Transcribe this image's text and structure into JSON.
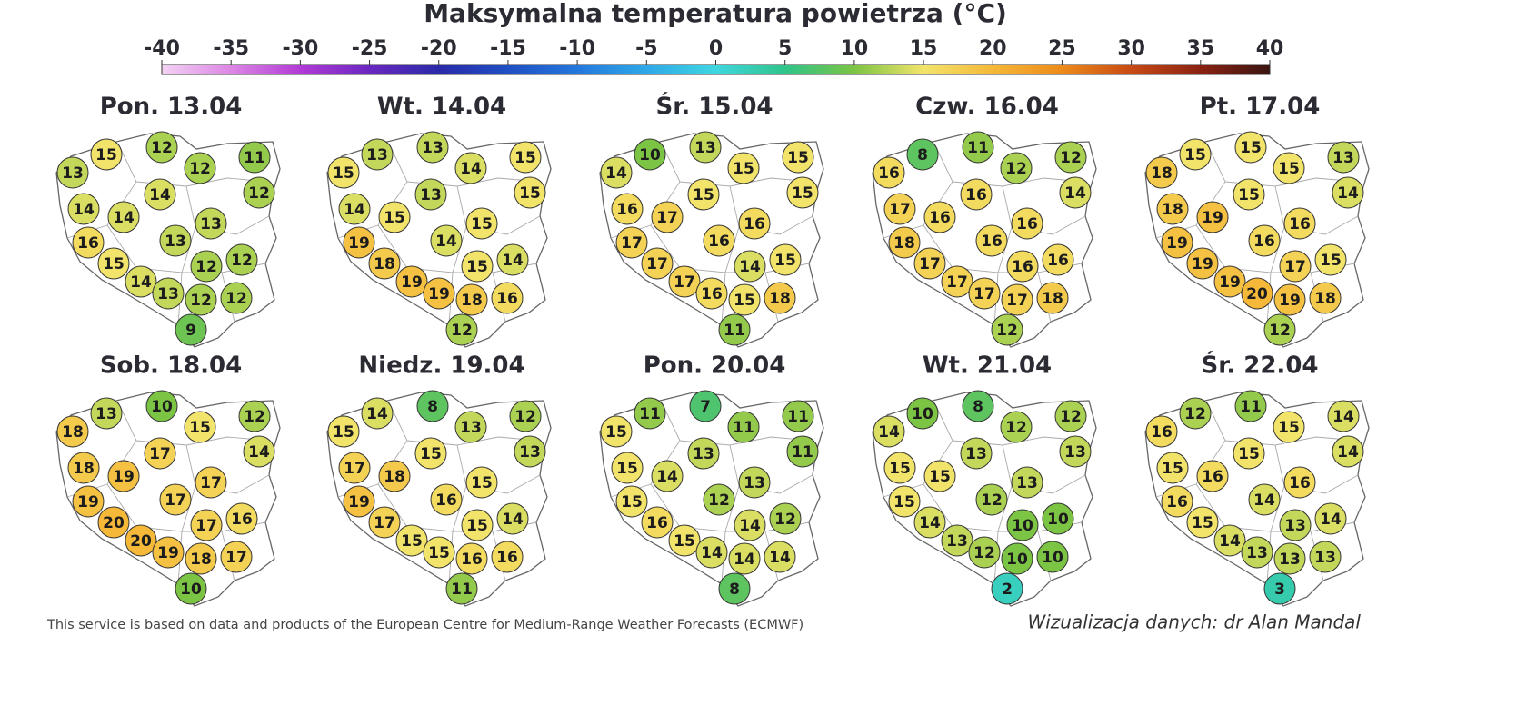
{
  "title": "Maksymalna temperatura powietrza (°C)",
  "colorbar": {
    "range": [
      -40,
      40
    ],
    "ticks": [
      -40,
      -35,
      -30,
      -25,
      -20,
      -15,
      -10,
      -5,
      0,
      5,
      10,
      15,
      20,
      25,
      30,
      35,
      40
    ],
    "colormap": [
      "#f3d3f3",
      "#dc86e4",
      "#b23ad6",
      "#6a28c0",
      "#2a2aa8",
      "#1f4fc4",
      "#2478dc",
      "#2ea8e8",
      "#3fd6e0",
      "#2fc48a",
      "#7cc444",
      "#f2e46a",
      "#f5b838",
      "#ec8a1a",
      "#c84a14",
      "#8a2212",
      "#3a1512"
    ]
  },
  "panels": [
    {
      "label": "Pon. 13.04",
      "values": [
        15,
        12,
        11,
        13,
        12,
        12,
        14,
        14,
        14,
        13,
        16,
        13,
        15,
        12,
        12,
        14,
        13,
        12,
        12,
        9
      ]
    },
    {
      "label": "Wt. 14.04",
      "values": [
        13,
        13,
        15,
        15,
        14,
        15,
        14,
        15,
        13,
        15,
        19,
        14,
        18,
        15,
        14,
        19,
        19,
        18,
        16,
        12
      ]
    },
    {
      "label": "Śr. 15.04",
      "values": [
        10,
        13,
        15,
        14,
        15,
        15,
        16,
        17,
        15,
        16,
        17,
        16,
        17,
        14,
        15,
        17,
        16,
        15,
        18,
        11
      ]
    },
    {
      "label": "Czw. 16.04",
      "values": [
        8,
        11,
        12,
        16,
        12,
        14,
        17,
        16,
        16,
        16,
        18,
        16,
        17,
        16,
        16,
        17,
        17,
        17,
        18,
        12
      ]
    },
    {
      "label": "Pt. 17.04",
      "values": [
        15,
        15,
        13,
        18,
        15,
        14,
        18,
        19,
        15,
        16,
        19,
        16,
        19,
        17,
        15,
        19,
        20,
        19,
        18,
        12
      ]
    },
    {
      "label": "Sob. 18.04",
      "values": [
        13,
        10,
        12,
        18,
        15,
        14,
        18,
        19,
        17,
        17,
        19,
        17,
        20,
        17,
        16,
        20,
        19,
        18,
        17,
        10
      ]
    },
    {
      "label": "Niedz. 19.04",
      "values": [
        14,
        8,
        12,
        15,
        13,
        13,
        17,
        18,
        15,
        15,
        19,
        16,
        17,
        15,
        14,
        15,
        15,
        16,
        16,
        11
      ]
    },
    {
      "label": "Pon. 20.04",
      "values": [
        11,
        7,
        11,
        15,
        11,
        11,
        15,
        14,
        13,
        13,
        15,
        12,
        16,
        14,
        12,
        15,
        14,
        14,
        14,
        8
      ]
    },
    {
      "label": "Wt. 21.04",
      "values": [
        10,
        8,
        12,
        14,
        12,
        13,
        15,
        15,
        13,
        13,
        15,
        12,
        14,
        10,
        10,
        13,
        12,
        10,
        10,
        2
      ]
    },
    {
      "label": "Śr. 22.04",
      "values": [
        12,
        11,
        14,
        16,
        15,
        14,
        15,
        16,
        15,
        16,
        16,
        14,
        15,
        13,
        14,
        14,
        13,
        13,
        13,
        3
      ]
    }
  ],
  "footer": {
    "source": "This service is based on data and products of the European Centre for Medium-Range Weather Forecasts (ECMWF)",
    "credit": "Wizualizacja danych: dr Alan Mandal"
  }
}
